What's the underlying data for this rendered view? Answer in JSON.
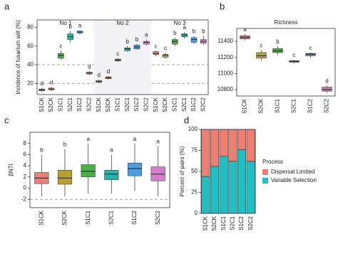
{
  "chart_data": [
    {
      "type": "box",
      "panel_label": "a",
      "y_label": "Incidence of fusarium wilt (%)",
      "ylim": [
        8,
        88
      ],
      "yticks": [
        20,
        40,
        60,
        80
      ],
      "hlines": [
        40,
        20
      ],
      "groups": [
        {
          "name": "No 1",
          "boxes": [
            {
              "category": "S1CK",
              "color": "#ef7f73",
              "low": 11,
              "q1": 12,
              "median": 13,
              "q3": 14,
              "high": 15,
              "letter": "d"
            },
            {
              "category": "S2CK",
              "color": "#c7a03c",
              "low": 12,
              "q1": 13,
              "median": 14,
              "q3": 15,
              "high": 16,
              "letter": "d"
            },
            {
              "category": "S1C1",
              "color": "#4cae4c",
              "low": 45,
              "q1": 47,
              "median": 50,
              "q3": 52,
              "high": 55,
              "letter": "c"
            },
            {
              "category": "S2C1",
              "color": "#26b59c",
              "low": 64,
              "q1": 67,
              "median": 70,
              "q3": 73,
              "high": 76,
              "letter": "b"
            },
            {
              "category": "S1C2",
              "color": "#4a9ee0",
              "low": 72,
              "q1": 74,
              "median": 75,
              "q3": 76,
              "high": 77,
              "letter": "a"
            },
            {
              "category": "S2C2",
              "color": "#cf7fcf",
              "low": 29,
              "q1": 30,
              "median": 31,
              "q3": 32,
              "high": 33,
              "letter": "d"
            }
          ]
        },
        {
          "name": "No 2",
          "boxes": [
            {
              "category": "S1CK",
              "color": "#ef7f73",
              "low": 20,
              "q1": 21,
              "median": 22,
              "q3": 23,
              "high": 24,
              "letter": "d"
            },
            {
              "category": "S2CK",
              "color": "#c7a03c",
              "low": 24,
              "q1": 25,
              "median": 26,
              "q3": 27,
              "high": 28,
              "letter": "d"
            },
            {
              "category": "S1C1",
              "color": "#4cae4c",
              "low": 43,
              "q1": 44,
              "median": 45,
              "q3": 46,
              "high": 47,
              "letter": "c"
            },
            {
              "category": "S2C1",
              "color": "#26b59c",
              "low": 54,
              "q1": 55,
              "median": 57,
              "q3": 58,
              "high": 60,
              "letter": "b"
            },
            {
              "category": "S1C2",
              "color": "#4a9ee0",
              "low": 56,
              "q1": 57,
              "median": 59,
              "q3": 61,
              "high": 62,
              "letter": "b"
            },
            {
              "category": "S2C2",
              "color": "#cf7fcf",
              "low": 61,
              "q1": 62,
              "median": 64,
              "q3": 65,
              "high": 67,
              "letter": "a"
            }
          ]
        },
        {
          "name": "No 3",
          "boxes": [
            {
              "category": "S1CK",
              "color": "#ef7f73",
              "low": 49,
              "q1": 51,
              "median": 52,
              "q3": 54,
              "high": 55,
              "letter": "c"
            },
            {
              "category": "S2CK",
              "color": "#c7a03c",
              "low": 46,
              "q1": 48,
              "median": 50,
              "q3": 51,
              "high": 53,
              "letter": "c"
            },
            {
              "category": "S1C1",
              "color": "#4cae4c",
              "low": 60,
              "q1": 62,
              "median": 65,
              "q3": 67,
              "high": 69,
              "letter": "b"
            },
            {
              "category": "S2C1",
              "color": "#26b59c",
              "low": 68,
              "q1": 70,
              "median": 72,
              "q3": 73,
              "high": 75,
              "letter": "a"
            },
            {
              "category": "S1C2",
              "color": "#4a9ee0",
              "low": 62,
              "q1": 64,
              "median": 67,
              "q3": 69,
              "high": 71,
              "letter": "b"
            },
            {
              "category": "S2C2",
              "color": "#cf7fcf",
              "low": 61,
              "q1": 63,
              "median": 65,
              "q3": 67,
              "high": 71,
              "letter": "b"
            }
          ]
        }
      ]
    },
    {
      "type": "box",
      "panel_label": "b",
      "title": "Richness",
      "ylim": [
        10720,
        11560
      ],
      "yticks": [
        10800,
        11000,
        11200,
        11400
      ],
      "boxes": [
        {
          "category": "S1CK",
          "color": "#e86f86",
          "low": 11410,
          "q1": 11430,
          "median": 11450,
          "q3": 11470,
          "high": 11490,
          "letter": "a"
        },
        {
          "category": "S2CK",
          "color": "#b5a13c",
          "low": 11160,
          "q1": 11190,
          "median": 11220,
          "q3": 11260,
          "high": 11290,
          "letter": "c"
        },
        {
          "category": "S1C1",
          "color": "#4cab3c",
          "low": 11230,
          "q1": 11260,
          "median": 11280,
          "q3": 11310,
          "high": 11340,
          "letter": "b"
        },
        {
          "category": "S2C1",
          "color": "#2bb5a0",
          "low": 11130,
          "q1": 11140,
          "median": 11150,
          "q3": 11160,
          "high": 11170,
          "letter": "c"
        },
        {
          "category": "S1C2",
          "color": "#4a8ed6",
          "low": 11200,
          "q1": 11220,
          "median": 11240,
          "q3": 11250,
          "high": 11260,
          "letter": "c"
        },
        {
          "category": "S2C2",
          "color": "#c87aa8",
          "low": 10760,
          "q1": 10780,
          "median": 10800,
          "q3": 10830,
          "high": 10850,
          "letter": "d"
        }
      ]
    },
    {
      "type": "box",
      "panel_label": "c",
      "y_label": "βNTI",
      "ylim": [
        -3.5,
        10
      ],
      "yticks": [
        -2,
        0,
        2,
        4,
        6,
        8
      ],
      "hlines": [
        -2
      ],
      "boxes": [
        {
          "category": "S1CK",
          "color": "#f07f73",
          "low": -1.5,
          "q1": 0.8,
          "median": 1.8,
          "q3": 2.8,
          "high": 6,
          "letter": "b"
        },
        {
          "category": "S2CK",
          "color": "#b8a030",
          "low": -1.5,
          "q1": 0.7,
          "median": 1.8,
          "q3": 3.2,
          "high": 7,
          "letter": "b"
        },
        {
          "category": "S1C1",
          "color": "#4bb04a",
          "low": -1,
          "q1": 2,
          "median": 3,
          "q3": 4.2,
          "high": 8,
          "letter": "a"
        },
        {
          "category": "S2C1",
          "color": "#22b5a8",
          "low": -1,
          "q1": 1.5,
          "median": 2.5,
          "q3": 3.2,
          "high": 6,
          "letter": "a"
        },
        {
          "category": "S1C2",
          "color": "#4a9ee0",
          "low": -0.5,
          "q1": 2.2,
          "median": 3.5,
          "q3": 4.5,
          "high": 8,
          "letter": "a"
        },
        {
          "category": "S2C2",
          "color": "#d47fcb",
          "low": -1.5,
          "q1": 1.3,
          "median": 2.5,
          "q3": 3.8,
          "high": 7.5,
          "letter": "a"
        }
      ]
    },
    {
      "type": "stacked-bar",
      "panel_label": "d",
      "y_label": "Percent of pairs (%)",
      "legend_title": "Process",
      "ylim": [
        0,
        100
      ],
      "yticks": [
        0,
        25,
        50,
        75,
        100
      ],
      "categories": [
        "S1CK",
        "S2CK",
        "S1C1",
        "S2C1",
        "S1C2",
        "S2C2"
      ],
      "series": [
        {
          "name": "Variable Selection",
          "color": "#1fbfc4",
          "values": [
            44,
            56,
            68,
            62,
            76,
            62
          ]
        },
        {
          "name": "Dispersal Limited",
          "color": "#f07f73",
          "values": [
            56,
            44,
            32,
            38,
            24,
            38
          ]
        }
      ]
    }
  ]
}
